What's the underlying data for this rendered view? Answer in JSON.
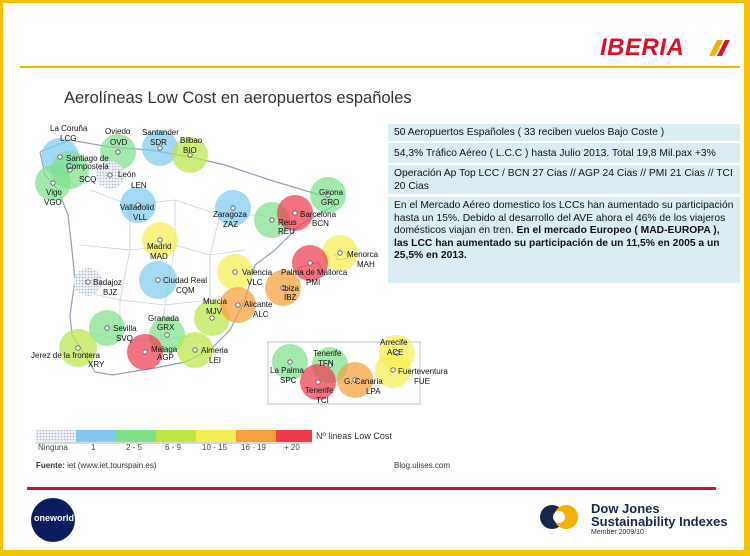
{
  "header": {
    "brand": "IBERIA",
    "title": "Aerolíneas Low Cost en aeropuertos españoles"
  },
  "panel": {
    "line1": "50 Aeropuertos Españoles ( 33 reciben vuelos Bajo Coste )",
    "line2": "54,3% Tráfico Aéreo ( L.C.C ) hasta Julio 2013.  Total  19,8 Mil.pax +3%",
    "line3": "Operación Ap Top LCC / BCN 27 Cias // AGP 24 Cias // PMI 21 Cias // TCI 20  Cias",
    "line4a": "En el Mercado Aéreo domestico los LCCs han aumentado su participación hasta un 15%. Debido al desarrollo del AVE ahora el 46%  de los viajeros domésticos viajan en tren. ",
    "line4b": "En el mercado Europeo ( MAD-EUROPA ), las LCC han aumentado su participación de un 11,5% en 2005  a un 25,5% en 2013."
  },
  "colors": {
    "ninguna": "#c9d3e2",
    "c1": "#7ecbef",
    "c2": "#7fe08a",
    "c3": "#bde64a",
    "c4": "#f5ee52",
    "c5": "#f5a03a",
    "c6": "#ee3b4e",
    "brand_red": "#d8122a",
    "frame_yellow": "#f3c300"
  },
  "airports": [
    {
      "city": "La Coruña",
      "code": "LCG",
      "cat": "c1"
    },
    {
      "city": "Santiago de Compostela",
      "code": "SCQ",
      "cat": "c2"
    },
    {
      "city": "Vigo",
      "code": "VGO",
      "cat": "c2"
    },
    {
      "city": "Oviedo",
      "code": "OVD",
      "cat": "c2"
    },
    {
      "city": "Santander",
      "code": "SDR",
      "cat": "c1"
    },
    {
      "city": "Bilbao",
      "code": "BIO",
      "cat": "c3"
    },
    {
      "city": "León",
      "code": "LEN",
      "cat": "ninguna"
    },
    {
      "city": "Valladolid",
      "code": "VLL",
      "cat": "c1"
    },
    {
      "city": "Zaragoza",
      "code": "ZAZ",
      "cat": "c1"
    },
    {
      "city": "Girona",
      "code": "GRO",
      "cat": "c2"
    },
    {
      "city": "Reus",
      "code": "REU",
      "cat": "c2"
    },
    {
      "city": "Barcelona",
      "code": "BCN",
      "cat": "c6"
    },
    {
      "city": "Madrid",
      "code": "MAD",
      "cat": "c4"
    },
    {
      "city": "Menorca",
      "code": "MAH",
      "cat": "c4"
    },
    {
      "city": "Palma de Mallorca",
      "code": "PMI",
      "cat": "c6"
    },
    {
      "city": "Valencia",
      "code": "VLC",
      "cat": "c4"
    },
    {
      "city": "Ibiza",
      "code": "IBZ",
      "cat": "c5"
    },
    {
      "city": "Badajoz",
      "code": "BJZ",
      "cat": "ninguna"
    },
    {
      "city": "Ciudad Real",
      "code": "CQM",
      "cat": "c1"
    },
    {
      "city": "Murcia",
      "code": "MJV",
      "cat": "c3"
    },
    {
      "city": "Alicante",
      "code": "ALC",
      "cat": "c5"
    },
    {
      "city": "Sevilla",
      "code": "SVQ",
      "cat": "c2"
    },
    {
      "city": "Granada",
      "code": "GRX",
      "cat": "c2"
    },
    {
      "city": "Jerez de la frontera",
      "code": "XRY",
      "cat": "c3"
    },
    {
      "city": "Malaga",
      "code": "AGP",
      "cat": "c6"
    },
    {
      "city": "Almeria",
      "code": "LEI",
      "cat": "c3"
    },
    {
      "city": "Tenerife",
      "code": "TFN",
      "cat": "c2"
    },
    {
      "city": "La Palma",
      "code": "SPC",
      "cat": "c2"
    },
    {
      "city": "Tenerife",
      "code": "TCI",
      "cat": "c6"
    },
    {
      "city": "G. Canaria",
      "code": "LPA",
      "cat": "c5"
    },
    {
      "city": "Arrecife",
      "code": "ACE",
      "cat": "c4"
    },
    {
      "city": "Fuerteventura",
      "code": "FUE",
      "cat": "c4"
    }
  ],
  "legend": {
    "title": "Nº lineas Low Cost",
    "labels": [
      "Ninguna",
      "1",
      "2 - 5",
      "6 - 9",
      "10 - 15",
      "16 - 19",
      "+ 20"
    ]
  },
  "footer": {
    "fuente_label": "Fuente:",
    "fuente_text": "iet  (www.iet.tourspain.es)",
    "blog": "Blog.ulises.com",
    "partner1": "oneworld",
    "partner2_line1": "Dow Jones",
    "partner2_line2": "Sustainability Indexes",
    "partner2_line3": "Member 2009/10"
  }
}
